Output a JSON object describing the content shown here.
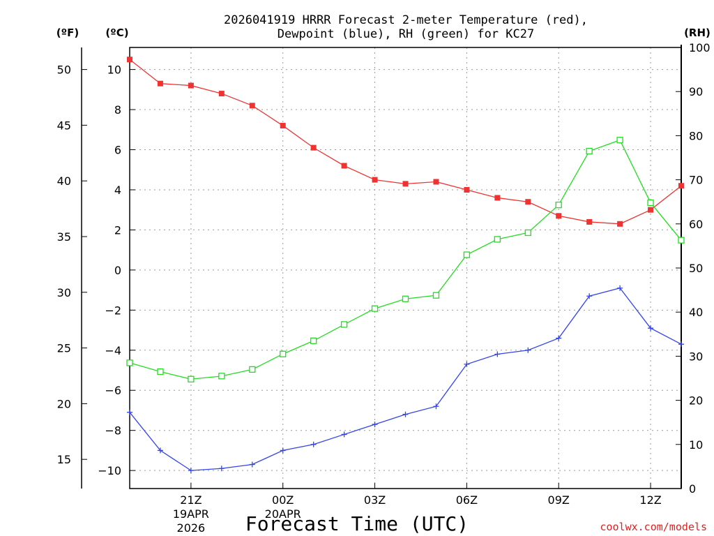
{
  "chart_data": {
    "type": "line",
    "title_line1": "2026041919 HRRR Forecast 2-meter Temperature (red),",
    "title_line2": "Dewpoint (blue), RH (green) for KC27",
    "xlabel": "Forecast Time (UTC)",
    "credit": "coolwx.com/models",
    "units": {
      "fahrenheit": "(ºF)",
      "celsius": "(ºC)",
      "rh": "(RH)"
    },
    "x_hours": [
      0,
      1,
      2,
      3,
      4,
      5,
      6,
      7,
      8,
      9,
      10,
      11,
      12,
      13,
      14,
      15,
      16,
      17,
      18
    ],
    "xlim": [
      0,
      18
    ],
    "x_ticks": [
      {
        "hour": 2,
        "label": "21Z",
        "sub1": "19APR",
        "sub2": "2026"
      },
      {
        "hour": 5,
        "label": "00Z",
        "sub1": "20APR",
        "sub2": ""
      },
      {
        "hour": 8,
        "label": "03Z",
        "sub1": "",
        "sub2": ""
      },
      {
        "hour": 11,
        "label": "06Z",
        "sub1": "",
        "sub2": ""
      },
      {
        "hour": 14,
        "label": "09Z",
        "sub1": "",
        "sub2": ""
      },
      {
        "hour": 17,
        "label": "12Z",
        "sub1": "",
        "sub2": ""
      }
    ],
    "celsius_axis": {
      "range": [
        -10.9,
        11.1
      ],
      "ticks": [
        "10",
        "8",
        "6",
        "4",
        "2",
        "0",
        "-2",
        "-4",
        "-6",
        "-8",
        "-10"
      ]
    },
    "fahrenheit_axis": {
      "ticks": [
        "50",
        "45",
        "40",
        "35",
        "30",
        "25",
        "20",
        "15"
      ]
    },
    "rh_axis": {
      "range": [
        0,
        100
      ],
      "ticks": [
        "100",
        "90",
        "80",
        "70",
        "60",
        "50",
        "40",
        "30",
        "20",
        "10",
        "0"
      ]
    },
    "series": [
      {
        "name": "2-meter Temperature",
        "axis": "celsius",
        "color": "#ee3333",
        "marker": "filled-square",
        "values": [
          10.5,
          9.3,
          9.2,
          8.8,
          8.2,
          7.2,
          6.1,
          5.2,
          4.5,
          4.3,
          4.4,
          4.0,
          3.6,
          3.4,
          2.7,
          2.4,
          2.3,
          3.0,
          4.2
        ]
      },
      {
        "name": "Dewpoint",
        "axis": "celsius",
        "color": "#3344ee",
        "marker": "plus",
        "values": [
          -7.1,
          -9.0,
          -10.0,
          -9.9,
          -9.7,
          -9.0,
          -8.7,
          -8.2,
          -7.7,
          -7.2,
          -6.8,
          -4.7,
          -4.2,
          -4.0,
          -3.4,
          -1.3,
          -0.9,
          -2.9,
          -3.7
        ]
      },
      {
        "name": "RH",
        "axis": "rh",
        "color": "#22dd22",
        "marker": "open-square",
        "values": [
          28.5,
          26.5,
          24.8,
          25.5,
          27.0,
          30.5,
          33.5,
          37.2,
          40.8,
          43.0,
          43.8,
          53.0,
          56.5,
          58.0,
          64.3,
          76.5,
          79.0,
          64.8,
          56.3
        ]
      }
    ],
    "grid": true
  }
}
